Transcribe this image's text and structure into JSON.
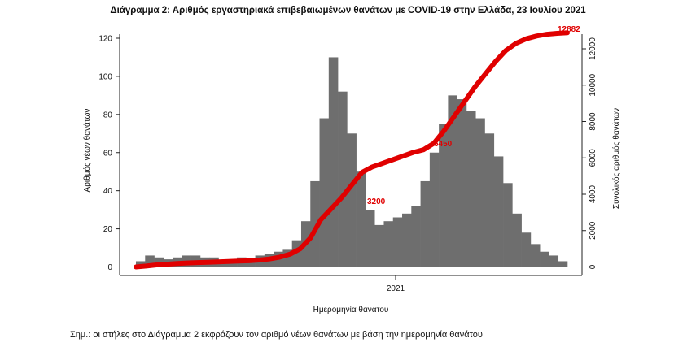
{
  "title": "Διάγραμμα 2: Αριθμός εργαστηριακά επιβεβαιωμένων θανάτων με COVID-19 στην Ελλάδα, 23 Ιουλίου 2021",
  "note": "Σημ.: οι στήλες στο Διάγραμμα 2 εκφράζουν τον αριθμό νέων θανάτων με βάση την ημερομηνία θανάτου",
  "colors": {
    "bars": "#6e6e6e",
    "cumulative": "#e00000",
    "axis": "#222222"
  },
  "chart_data": {
    "type": "bar",
    "xlabel": "Ημερομηνία θανάτου",
    "ylabel": "Αριθμός νέων θανάτων",
    "y2label": "Συνολικός αριθμός θανάτων",
    "x_tick_labels": [
      "2021"
    ],
    "ylim": [
      0,
      125
    ],
    "yticks": [
      0,
      20,
      40,
      60,
      80,
      100,
      120
    ],
    "y2lim": [
      0,
      13000
    ],
    "y2ticks": [
      0,
      2000,
      4000,
      6000,
      8000,
      10000,
      12000
    ],
    "grid": false,
    "bar_period_days": 10,
    "series": [
      {
        "kind": "bar",
        "values": [
          3,
          6,
          5,
          4,
          5,
          6,
          6,
          5,
          5,
          3,
          3,
          5,
          4,
          6,
          7,
          8,
          9,
          14,
          24,
          45,
          78,
          110,
          92,
          70,
          50,
          30,
          22,
          24,
          26,
          28,
          32,
          45,
          60,
          75,
          90,
          88,
          82,
          78,
          70,
          58,
          44,
          28,
          18,
          12,
          8,
          6,
          3
        ]
      },
      {
        "kind": "line",
        "values": [
          0,
          50,
          110,
          150,
          190,
          220,
          240,
          260,
          280,
          300,
          320,
          340,
          380,
          440,
          540,
          700,
          1000,
          1600,
          2600,
          3200,
          3800,
          4500,
          5200,
          5500,
          5700,
          5900,
          6100,
          6300,
          6450,
          6800,
          7500,
          8300,
          9100,
          9900,
          10600,
          11300,
          11900,
          12300,
          12550,
          12700,
          12800,
          12850,
          12882
        ]
      }
    ],
    "annotations": [
      "3200",
      "6450",
      "12882"
    ]
  }
}
